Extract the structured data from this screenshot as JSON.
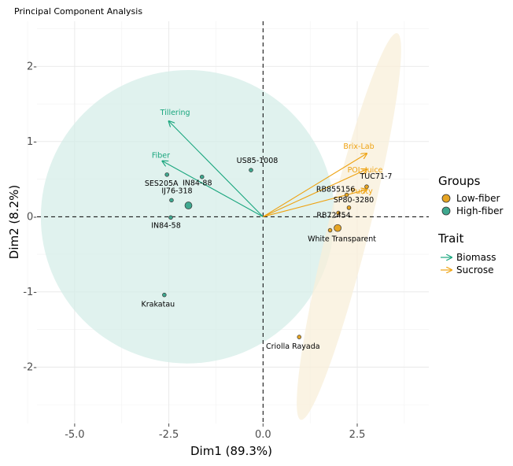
{
  "chart_data": {
    "type": "scatter",
    "title": "Principal Component Analysis",
    "xlabel": "Dim1 (89.3%)",
    "ylabel": "Dim2 (8.2%)",
    "xlim": [
      -6.0,
      4.4
    ],
    "ylim": [
      -2.75,
      2.6
    ],
    "x_ticks": [
      -5.0,
      -2.5,
      0.0,
      2.5
    ],
    "x_tick_labels": [
      "-5.0",
      "-2.5",
      "0.0",
      "2.5"
    ],
    "y_ticks": [
      -2,
      -1,
      0,
      1,
      2
    ],
    "y_tick_labels": [
      "-2-",
      "-1-",
      "0-",
      "1-",
      "2-"
    ],
    "grid": true,
    "legend_position": "right",
    "groups_legend": {
      "title": "Groups",
      "items": [
        {
          "label": "Low-fiber",
          "color": "#E6A524"
        },
        {
          "label": "High-fiber",
          "color": "#3FA88F"
        }
      ]
    },
    "trait_legend": {
      "title": "Trait",
      "items": [
        {
          "label": "Biomass",
          "color": "#1AA67E"
        },
        {
          "label": "Sucrose",
          "color": "#EEA211"
        }
      ]
    },
    "ellipses": [
      {
        "group": "High-fiber",
        "color": "#D5EEE8",
        "cx": -2.0,
        "cy": 0.0,
        "rx": 3.9,
        "ry": 1.95,
        "angle_deg": 0
      },
      {
        "group": "Low-fiber",
        "color": "#F8EFD9",
        "cx": 2.28,
        "cy": -0.13,
        "rx": 0.55,
        "ry": 2.65,
        "angle_deg": 0
      }
    ],
    "points": [
      {
        "label": "US85-1008",
        "x": -0.32,
        "y": 0.62,
        "group": "High-fiber"
      },
      {
        "label": "IN84-88",
        "x": -1.62,
        "y": 0.53,
        "group": "High-fiber"
      },
      {
        "label": "SES205A",
        "x": -2.55,
        "y": 0.56,
        "group": "High-fiber"
      },
      {
        "label": "IJ76-318",
        "x": -2.43,
        "y": 0.22,
        "group": "High-fiber"
      },
      {
        "label": "IN84-58",
        "x": -2.45,
        "y": -0.01,
        "group": "High-fiber"
      },
      {
        "label": "",
        "x": -1.98,
        "y": 0.15,
        "group": "High-fiber",
        "size": "large"
      },
      {
        "label": "Krakatau",
        "x": -2.62,
        "y": -1.04,
        "group": "High-fiber"
      },
      {
        "label": "TUC71-7",
        "x": 2.75,
        "y": 0.4,
        "group": "Low-fiber"
      },
      {
        "label": "RB855156",
        "x": 2.22,
        "y": 0.29,
        "group": "Low-fiber"
      },
      {
        "label": "SP80-3280",
        "x": 2.28,
        "y": 0.12,
        "group": "Low-fiber"
      },
      {
        "label": "RB72454",
        "x": 2.0,
        "y": 0.05,
        "group": "Low-fiber"
      },
      {
        "label": "White Transparent",
        "x": 1.78,
        "y": -0.18,
        "group": "Low-fiber"
      },
      {
        "label": "",
        "x": 1.98,
        "y": -0.15,
        "group": "Low-fiber",
        "size": "large"
      },
      {
        "label": "Criolla Rayada",
        "x": 0.96,
        "y": -1.6,
        "group": "Low-fiber"
      }
    ],
    "arrows": [
      {
        "label": "Tillering",
        "x": -2.5,
        "y": 1.27,
        "trait": "Biomass"
      },
      {
        "label": "Fiber",
        "x": -2.67,
        "y": 0.74,
        "trait": "Biomass"
      },
      {
        "label": "Brix-Lab",
        "x": 2.75,
        "y": 0.84,
        "trait": "Sucrose"
      },
      {
        "label": "POL-Juice",
        "x": 2.75,
        "y": 0.63,
        "trait": "Sucrose"
      },
      {
        "label": "Purity",
        "x": 2.75,
        "y": 0.36,
        "trait": "Sucrose"
      }
    ]
  }
}
